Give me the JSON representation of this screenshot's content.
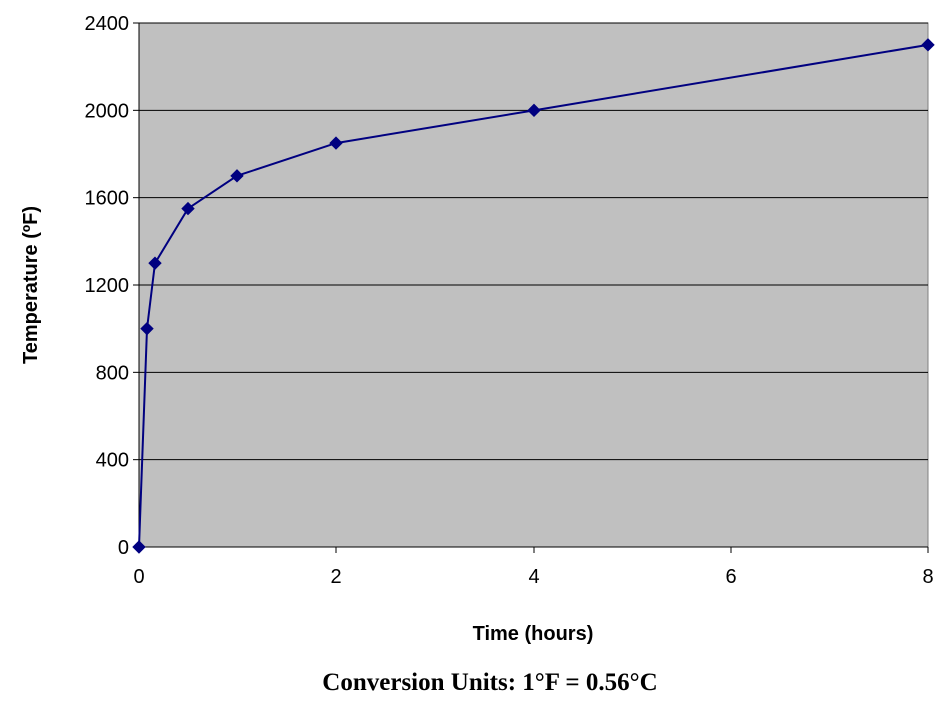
{
  "chart_data": {
    "type": "line",
    "x": [
      0,
      0.083,
      0.167,
      0.5,
      1,
      2,
      4,
      8
    ],
    "x_tick_labels": [
      "0",
      "2",
      "4",
      "6",
      "8"
    ],
    "y_tick_labels": [
      "0",
      "400",
      "800",
      "1200",
      "1600",
      "2000",
      "2400"
    ],
    "series": [
      {
        "values": [
          0,
          1000,
          1300,
          1550,
          1700,
          1850,
          2000,
          2300
        ],
        "color": "#000080",
        "marker": "diamond"
      }
    ],
    "xlabel": "Time (hours)",
    "ylabel": "Temperature (ºF)",
    "ylim": [
      0,
      2400
    ],
    "grid": "horizontal",
    "legend": "none",
    "plot_background": "#c0c0c0"
  },
  "footnote": "Conversion Units:  1°F = 0.56°C"
}
